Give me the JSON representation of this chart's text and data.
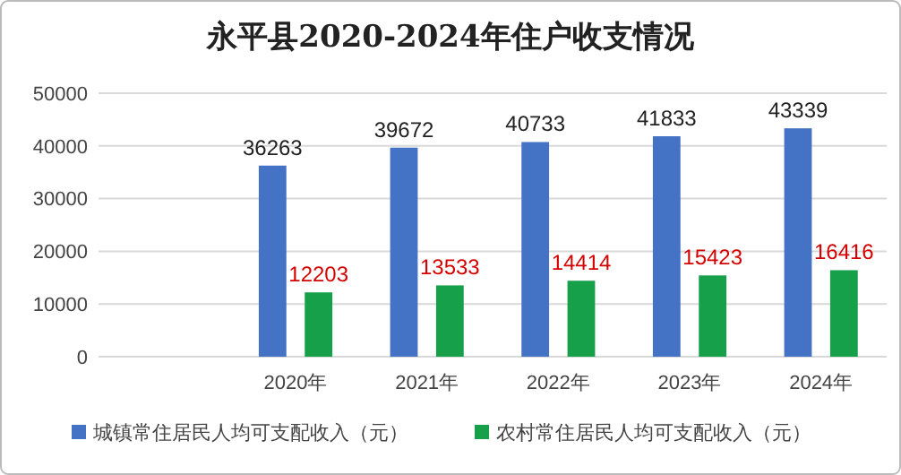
{
  "chart_data": {
    "type": "bar",
    "title": "永平县2020-2024年住户收支情况",
    "categories": [
      null,
      "2020年",
      "2021年",
      "2022年",
      "2023年",
      "2024年"
    ],
    "series": [
      {
        "name": "城镇常住居民人均可支配收入（元）",
        "color": "#4472c4",
        "values": [
          null,
          36263,
          39672,
          40733,
          41833,
          43339
        ]
      },
      {
        "name": "农村常住居民人均可支配收入（元）",
        "color": "#16a04a",
        "values": [
          null,
          12203,
          13533,
          14414,
          15423,
          16416
        ]
      }
    ],
    "ylim": [
      0,
      50000
    ],
    "yticks": [
      0,
      10000,
      20000,
      30000,
      40000,
      50000
    ],
    "grid": "y",
    "legend": "bottom",
    "data_labels": true
  }
}
